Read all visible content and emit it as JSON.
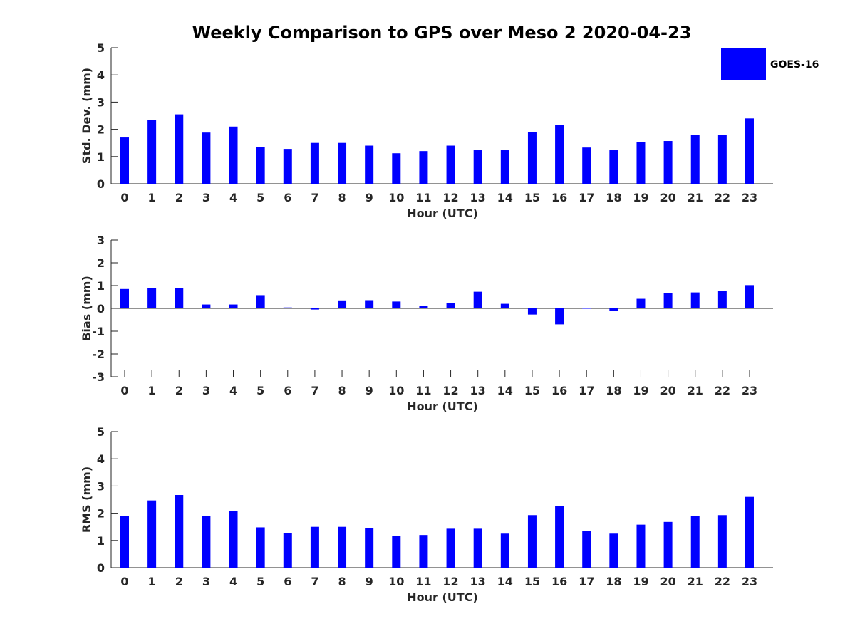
{
  "chart_data": {
    "type": "bar",
    "title": "Weekly Comparison to GPS over Meso 2 2020-04-23",
    "legend": {
      "entries": [
        "GOES-16"
      ],
      "placement": "top-right",
      "color": "#0000ff"
    },
    "categories": [
      "0",
      "1",
      "2",
      "3",
      "4",
      "5",
      "6",
      "7",
      "8",
      "9",
      "10",
      "11",
      "12",
      "13",
      "14",
      "15",
      "16",
      "17",
      "18",
      "19",
      "20",
      "21",
      "22",
      "23"
    ],
    "panels": [
      {
        "name": "std-dev",
        "ylabel": "Std. Dev. (mm)",
        "xlabel": "Hour (UTC)",
        "ylim": [
          0,
          5
        ],
        "yticks": [
          "0",
          "1",
          "2",
          "3",
          "4",
          "5"
        ],
        "series": [
          {
            "name": "GOES-16",
            "values": [
              1.7,
              2.33,
              2.55,
              1.88,
              2.1,
              1.36,
              1.28,
              1.5,
              1.5,
              1.4,
              1.12,
              1.2,
              1.4,
              1.23,
              1.23,
              1.9,
              2.17,
              1.33,
              1.23,
              1.52,
              1.57,
              1.78,
              1.78,
              2.4
            ]
          }
        ]
      },
      {
        "name": "bias",
        "ylabel": "Bias (mm)",
        "xlabel": "Hour (UTC)",
        "ylim": [
          -3,
          3
        ],
        "yticks": [
          "-3",
          "-2",
          "-1",
          "0",
          "1",
          "2",
          "3"
        ],
        "series": [
          {
            "name": "GOES-16",
            "values": [
              0.85,
              0.9,
              0.9,
              0.17,
              0.17,
              0.58,
              0.04,
              -0.05,
              0.35,
              0.36,
              0.3,
              0.1,
              0.24,
              0.73,
              0.2,
              -0.27,
              -0.7,
              0.0,
              -0.1,
              0.42,
              0.67,
              0.7,
              0.76,
              1.02
            ]
          }
        ]
      },
      {
        "name": "rms",
        "ylabel": "RMS (mm)",
        "xlabel": "Hour (UTC)",
        "ylim": [
          0,
          5
        ],
        "yticks": [
          "0",
          "1",
          "2",
          "3",
          "4",
          "5"
        ],
        "series": [
          {
            "name": "GOES-16",
            "values": [
              1.9,
              2.47,
              2.67,
              1.9,
              2.07,
              1.48,
              1.27,
              1.5,
              1.5,
              1.45,
              1.17,
              1.2,
              1.43,
              1.43,
              1.25,
              1.93,
              2.27,
              1.35,
              1.25,
              1.58,
              1.68,
              1.9,
              1.93,
              2.6
            ]
          }
        ]
      }
    ]
  }
}
